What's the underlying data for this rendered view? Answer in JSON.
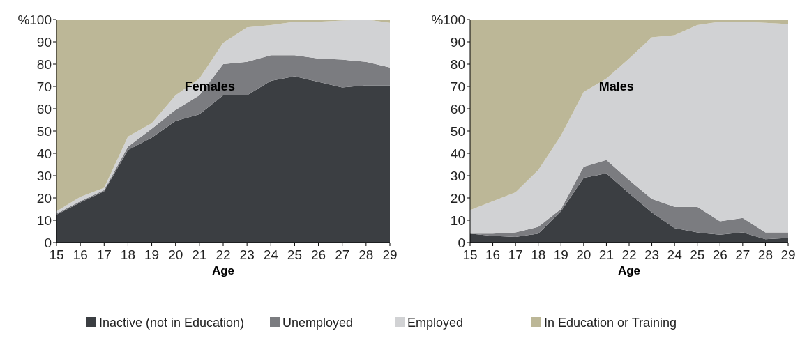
{
  "chart_data": [
    {
      "type": "area",
      "title": "Females",
      "xlabel": "Age",
      "stacked": true,
      "legend": "bottom",
      "x": [
        15,
        16,
        17,
        18,
        19,
        20,
        21,
        22,
        23,
        24,
        25,
        26,
        27,
        28,
        29
      ],
      "xlim": [
        15,
        29
      ],
      "xticks": [
        15,
        16,
        17,
        18,
        19,
        20,
        21,
        22,
        23,
        24,
        25,
        26,
        27,
        28,
        29
      ],
      "ylim": [
        0,
        100
      ],
      "yticks": [
        0,
        10,
        20,
        30,
        40,
        50,
        60,
        70,
        80,
        90,
        {
          "value": 100,
          "label": "%100"
        }
      ],
      "series": [
        {
          "name": "Inactive (not in Education)",
          "color": "#3b3e42",
          "values": [
            12.5,
            18,
            23,
            41.5,
            47,
            54.5,
            57.5,
            66,
            66,
            72.5,
            74.5,
            72,
            69.5,
            70.5,
            70.5
          ]
        },
        {
          "name": "Unemployed",
          "color": "#7b7c80",
          "values": [
            0.5,
            0.5,
            0.5,
            1.5,
            4,
            5,
            8.5,
            14,
            15,
            11.5,
            9.5,
            10.5,
            12.5,
            10.5,
            8
          ]
        },
        {
          "name": "Employed",
          "color": "#d1d2d4",
          "values": [
            1,
            2,
            1,
            4.5,
            2.5,
            6.5,
            7.5,
            9.5,
            15.5,
            13.5,
            15,
            16.5,
            17.5,
            19,
            20
          ]
        },
        {
          "name": "In Education or Training",
          "color": "#bcb797",
          "values": [
            86,
            79.5,
            75.5,
            52.5,
            46.5,
            34,
            26.5,
            10.5,
            3.5,
            2.5,
            1,
            1,
            0.5,
            0,
            1.5
          ]
        }
      ]
    },
    {
      "type": "area",
      "title": "Males",
      "xlabel": "Age",
      "stacked": true,
      "x": [
        15,
        16,
        17,
        18,
        19,
        20,
        21,
        22,
        23,
        24,
        25,
        26,
        27,
        28,
        29
      ],
      "xlim": [
        15,
        29
      ],
      "xticks": [
        15,
        16,
        17,
        18,
        19,
        20,
        21,
        22,
        23,
        24,
        25,
        26,
        27,
        28,
        29
      ],
      "ylim": [
        0,
        100
      ],
      "yticks": [
        0,
        10,
        20,
        30,
        40,
        50,
        60,
        70,
        80,
        90,
        {
          "value": 100,
          "label": "%100"
        }
      ],
      "series": [
        {
          "color": "#3b3e42",
          "values": [
            4,
            3,
            2.5,
            4,
            14,
            29,
            31,
            22,
            13.5,
            6.5,
            4.5,
            3.5,
            4.5,
            1.5,
            2
          ]
        },
        {
          "color": "#7b7c80",
          "values": [
            0,
            1,
            2,
            3,
            1,
            5,
            6,
            6,
            6,
            9.5,
            11.5,
            6,
            6.5,
            3,
            2.5
          ]
        },
        {
          "color": "#d1d2d4",
          "values": [
            10.5,
            14.5,
            18,
            25.5,
            33,
            33.5,
            36.5,
            54.5,
            72.5,
            77,
            81.5,
            89.5,
            88,
            94,
            93.5
          ]
        },
        {
          "color": "#bcb797",
          "values": [
            85.5,
            81.5,
            77.5,
            67.5,
            52,
            32.5,
            26.5,
            17.5,
            8,
            7,
            2.5,
            1,
            1,
            1.5,
            2
          ]
        }
      ]
    }
  ]
}
